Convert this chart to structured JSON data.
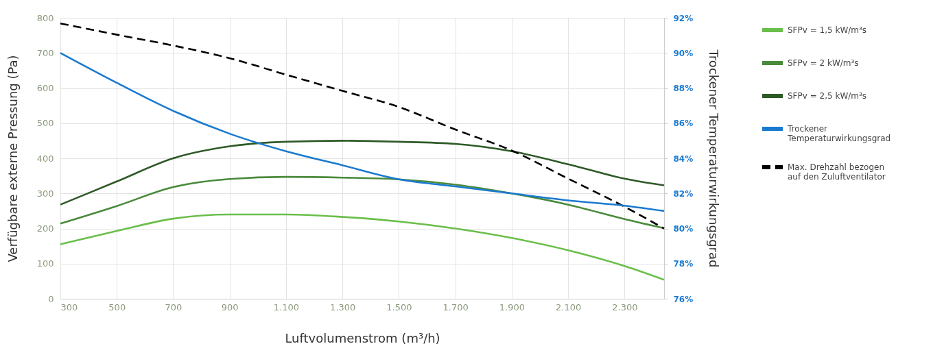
{
  "chart_data": {
    "type": "line",
    "xlabel": "Luftvolumenstrom (m³/h)",
    "ylabel": "Verfügbare externe Pressung (Pa)",
    "y2label": "Trockener Temperaturwirkungsgrad",
    "x": [
      300,
      500,
      700,
      900,
      1100,
      1300,
      1500,
      1700,
      1900,
      2100,
      2300,
      2440
    ],
    "xlim": [
      300,
      2440
    ],
    "xticks": [
      300,
      500,
      700,
      900,
      {
        "value": 1100,
        "label": "1.100"
      },
      {
        "value": 1300,
        "label": "1.300"
      },
      {
        "value": 1500,
        "label": "1.500"
      },
      {
        "value": 1700,
        "label": "1.700"
      },
      {
        "value": 1900,
        "label": "1.900"
      },
      {
        "value": 2100,
        "label": "2.100"
      },
      {
        "value": 2300,
        "label": "2.300"
      }
    ],
    "ylim": [
      0,
      800
    ],
    "yticks": [
      0,
      100,
      200,
      300,
      400,
      500,
      600,
      700,
      800
    ],
    "y2lim": [
      76,
      92
    ],
    "y2ticks": [
      {
        "value": 76,
        "label": "76%"
      },
      {
        "value": 78,
        "label": "78%"
      },
      {
        "value": 80,
        "label": "80%"
      },
      {
        "value": 82,
        "label": "82%"
      },
      {
        "value": 84,
        "label": "84%"
      },
      {
        "value": 86,
        "label": "86%"
      },
      {
        "value": 88,
        "label": "88%"
      },
      {
        "value": 90,
        "label": "90%"
      },
      {
        "value": 92,
        "label": "92%"
      }
    ],
    "grid": true,
    "legend": "right",
    "series": [
      {
        "name": "SFPv = 1,5 kW/m³s",
        "color": "#6abf4b",
        "values": [
          155,
          193,
          228,
          240,
          240,
          233,
          220,
          200,
          173,
          138,
          93,
          54
        ]
      },
      {
        "name": "SFPv = 2 kW/m³s",
        "color": "#4a8a3c",
        "values": [
          214,
          264,
          318,
          341,
          347,
          345,
          340,
          325,
          300,
          268,
          227,
          201
        ]
      },
      {
        "name": "SFPv = 2,5 kW/m³s",
        "color": "#2e5a27",
        "values": [
          268,
          334,
          400,
          434,
          447,
          450,
          447,
          441,
          420,
          383,
          342,
          323
        ]
      },
      {
        "name": "Trockener Temperaturwirkungsgrad",
        "color": "#1a7ad0",
        "axis": "y2",
        "values": [
          90.0,
          88.3,
          86.7,
          85.4,
          84.4,
          83.6,
          82.8,
          82.4,
          82.0,
          81.6,
          81.3,
          81.0
        ]
      },
      {
        "name": "Max. Drehzahl bezogen auf den Zuluftventilator",
        "color": "#000000",
        "line_style": "dashed",
        "values": [
          784,
          752,
          721,
          685,
          638,
          592,
          546,
          482,
          422,
          342,
          262,
          200
        ]
      }
    ]
  }
}
